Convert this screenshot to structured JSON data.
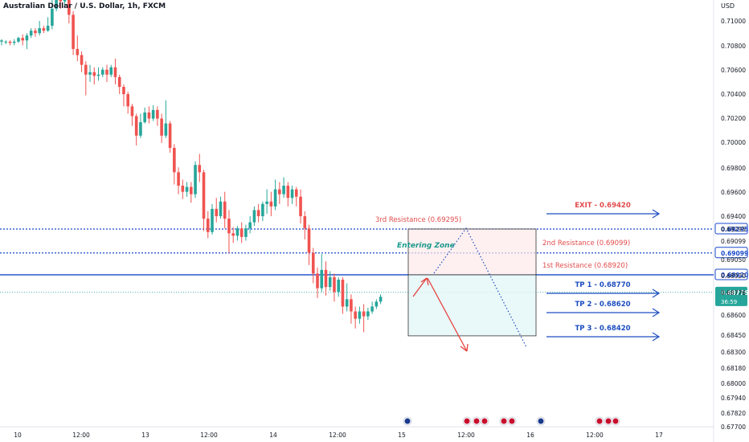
{
  "header": {
    "title": "Australian Dollar / U.S. Dollar, 1h, FXCM",
    "currency": "USD"
  },
  "price_axis": {
    "ticks": [
      "0.71000",
      "0.70800",
      "0.70600",
      "0.70400",
      "0.70200",
      "0.70000",
      "0.69800",
      "0.69600",
      "0.69400",
      "0.69295",
      "0.69099",
      "0.69050",
      "0.68920",
      "0.68776",
      "0.68600",
      "0.68450",
      "0.68300",
      "0.68180",
      "0.68000",
      "0.67940",
      "0.67820",
      "0.67700"
    ],
    "current_price": "0.68776",
    "countdown": "36:59"
  },
  "time_axis": {
    "ticks": [
      "10",
      "12:00",
      "13",
      "12:00",
      "14",
      "12:00",
      "15",
      "12:00",
      "16",
      "12:00",
      "17"
    ]
  },
  "annotations": {
    "third_resistance": "3rd Resistance (0.69295)",
    "second_resistance": "2nd Resistance (0.69099)",
    "first_resistance": "1st Resistance (0.68920)",
    "entering_zone": "Entering Zone",
    "exit": "EXIT - 0.69420",
    "tp1": "TP 1 - 0.68770",
    "tp2": "TP 2 - 0.68620",
    "tp3": "TP 3 - 0.68420"
  },
  "colors": {
    "up": "#26a69a",
    "down": "#ef5350",
    "blue": "#1848cc",
    "label_red": "#e24c4c",
    "tp_blue": "#1d4ec0"
  },
  "chart_data": {
    "type": "candlestick",
    "title": "Australian Dollar / U.S. Dollar, 1h, FXCM",
    "ylabel": "USD",
    "ylim": [
      0.6766,
      0.7121
    ],
    "candles": [
      [
        0.7083,
        0.7084,
        0.708,
        0.7085
      ],
      [
        0.7083,
        0.7083,
        0.7081,
        0.7084
      ],
      [
        0.7083,
        0.7082,
        0.708,
        0.7084
      ],
      [
        0.7082,
        0.7083,
        0.708,
        0.7085
      ],
      [
        0.7083,
        0.7086,
        0.7082,
        0.7087
      ],
      [
        0.7086,
        0.7084,
        0.708,
        0.7089
      ],
      [
        0.7084,
        0.7088,
        0.7077,
        0.709
      ],
      [
        0.7088,
        0.7092,
        0.7086,
        0.7094
      ],
      [
        0.7092,
        0.709,
        0.7087,
        0.7094
      ],
      [
        0.709,
        0.7094,
        0.7088,
        0.71
      ],
      [
        0.7094,
        0.7092,
        0.709,
        0.7096
      ],
      [
        0.7092,
        0.7096,
        0.7091,
        0.7103
      ],
      [
        0.7096,
        0.711,
        0.7093,
        0.712
      ],
      [
        0.711,
        0.712,
        0.7108,
        0.7121
      ],
      [
        0.712,
        0.7116,
        0.711,
        0.7121
      ],
      [
        0.7116,
        0.7119,
        0.7112,
        0.7121
      ],
      [
        0.7119,
        0.7105,
        0.7098,
        0.7121
      ],
      [
        0.7105,
        0.7077,
        0.7072,
        0.7108
      ],
      [
        0.7077,
        0.7072,
        0.7067,
        0.7088
      ],
      [
        0.7072,
        0.7064,
        0.7058,
        0.7075
      ],
      [
        0.7064,
        0.7056,
        0.7039,
        0.7067
      ],
      [
        0.7056,
        0.7058,
        0.705,
        0.7064
      ],
      [
        0.7058,
        0.7055,
        0.7048,
        0.7062
      ],
      [
        0.7055,
        0.7056,
        0.7051,
        0.7062
      ],
      [
        0.7056,
        0.706,
        0.7054,
        0.7062
      ],
      [
        0.706,
        0.7056,
        0.705,
        0.7064
      ],
      [
        0.7056,
        0.7062,
        0.7054,
        0.7064
      ],
      [
        0.7062,
        0.7054,
        0.7048,
        0.7069
      ],
      [
        0.7054,
        0.7046,
        0.704,
        0.7056
      ],
      [
        0.7046,
        0.704,
        0.703,
        0.7048
      ],
      [
        0.704,
        0.703,
        0.7024,
        0.7042
      ],
      [
        0.703,
        0.7022,
        0.7014,
        0.7032
      ],
      [
        0.7022,
        0.7006,
        0.6998,
        0.7024
      ],
      [
        0.7006,
        0.7017,
        0.7004,
        0.7024
      ],
      [
        0.7017,
        0.7025,
        0.7016,
        0.7029
      ],
      [
        0.7025,
        0.702,
        0.7016,
        0.703
      ],
      [
        0.702,
        0.7027,
        0.7018,
        0.7031
      ],
      [
        0.7027,
        0.702,
        0.7014,
        0.703
      ],
      [
        0.702,
        0.7006,
        0.7,
        0.7024
      ],
      [
        0.7006,
        0.7016,
        0.7004,
        0.7035
      ],
      [
        0.7016,
        0.6996,
        0.6992,
        0.7018
      ],
      [
        0.6996,
        0.6976,
        0.6966,
        0.6999
      ],
      [
        0.6976,
        0.6965,
        0.6958,
        0.698
      ],
      [
        0.6965,
        0.696,
        0.6954,
        0.697
      ],
      [
        0.696,
        0.6964,
        0.6956,
        0.6968
      ],
      [
        0.6964,
        0.6958,
        0.6951,
        0.6968
      ],
      [
        0.6958,
        0.6982,
        0.6955,
        0.6985
      ],
      [
        0.6982,
        0.6976,
        0.6968,
        0.6991
      ],
      [
        0.6976,
        0.6938,
        0.6928,
        0.6978
      ],
      [
        0.6938,
        0.6927,
        0.6922,
        0.6944
      ],
      [
        0.6927,
        0.6946,
        0.6925,
        0.695
      ],
      [
        0.6946,
        0.694,
        0.6935,
        0.6955
      ],
      [
        0.694,
        0.6952,
        0.6938,
        0.6956
      ],
      [
        0.6952,
        0.6938,
        0.693,
        0.696
      ],
      [
        0.6938,
        0.6926,
        0.691,
        0.6945
      ],
      [
        0.6926,
        0.6924,
        0.6918,
        0.6931
      ],
      [
        0.6924,
        0.693,
        0.692,
        0.6932
      ],
      [
        0.693,
        0.6923,
        0.6918,
        0.6935
      ],
      [
        0.6923,
        0.693,
        0.692,
        0.6933
      ],
      [
        0.693,
        0.6935,
        0.6926,
        0.694
      ],
      [
        0.6935,
        0.6945,
        0.6932,
        0.6948
      ],
      [
        0.6945,
        0.694,
        0.6935,
        0.695
      ],
      [
        0.694,
        0.695,
        0.6936,
        0.6952
      ],
      [
        0.695,
        0.6952,
        0.6942,
        0.6962
      ],
      [
        0.6952,
        0.6948,
        0.694,
        0.696
      ],
      [
        0.6948,
        0.6962,
        0.6945,
        0.697
      ],
      [
        0.6962,
        0.6958,
        0.695,
        0.6968
      ],
      [
        0.6958,
        0.6965,
        0.6955,
        0.6972
      ],
      [
        0.6965,
        0.6955,
        0.6948,
        0.6968
      ],
      [
        0.6955,
        0.6962,
        0.695,
        0.6965
      ],
      [
        0.6962,
        0.6956,
        0.6948,
        0.6964
      ],
      [
        0.6956,
        0.694,
        0.6934,
        0.6962
      ],
      [
        0.694,
        0.693,
        0.6921,
        0.6944
      ],
      [
        0.693,
        0.691,
        0.69,
        0.6933
      ],
      [
        0.691,
        0.6893,
        0.6885,
        0.6914
      ],
      [
        0.6893,
        0.6881,
        0.6873,
        0.6898
      ],
      [
        0.6881,
        0.6896,
        0.6878,
        0.6909
      ],
      [
        0.6896,
        0.6882,
        0.6875,
        0.6903
      ],
      [
        0.6882,
        0.689,
        0.6879,
        0.6895
      ],
      [
        0.689,
        0.6878,
        0.687,
        0.6893
      ],
      [
        0.6878,
        0.6888,
        0.6874,
        0.689
      ],
      [
        0.6888,
        0.6866,
        0.686,
        0.689
      ],
      [
        0.6866,
        0.6872,
        0.6862,
        0.6885
      ],
      [
        0.6872,
        0.6862,
        0.6852,
        0.6876
      ],
      [
        0.6862,
        0.6856,
        0.6848,
        0.6866
      ],
      [
        0.6856,
        0.6862,
        0.6852,
        0.6866
      ],
      [
        0.6862,
        0.6858,
        0.6845,
        0.6868
      ],
      [
        0.6858,
        0.6862,
        0.6855,
        0.6865
      ],
      [
        0.6862,
        0.6866,
        0.686,
        0.687
      ],
      [
        0.6866,
        0.687,
        0.6864,
        0.6872
      ],
      [
        0.687,
        0.6874,
        0.6868,
        0.6876
      ]
    ],
    "levels": [
      {
        "name": "3rd Resistance",
        "value": 0.69295,
        "style": "dotted"
      },
      {
        "name": "2nd Resistance",
        "value": 0.69099,
        "style": "dotted"
      },
      {
        "name": "1st Resistance",
        "value": 0.6892,
        "style": "solid"
      },
      {
        "name": "Current",
        "value": 0.68776,
        "style": "dotted-teal"
      }
    ],
    "targets": [
      {
        "name": "EXIT",
        "value": 0.6942
      },
      {
        "name": "TP 1",
        "value": 0.6877
      },
      {
        "name": "TP 2",
        "value": 0.6862
      },
      {
        "name": "TP 3",
        "value": 0.6842
      }
    ]
  }
}
